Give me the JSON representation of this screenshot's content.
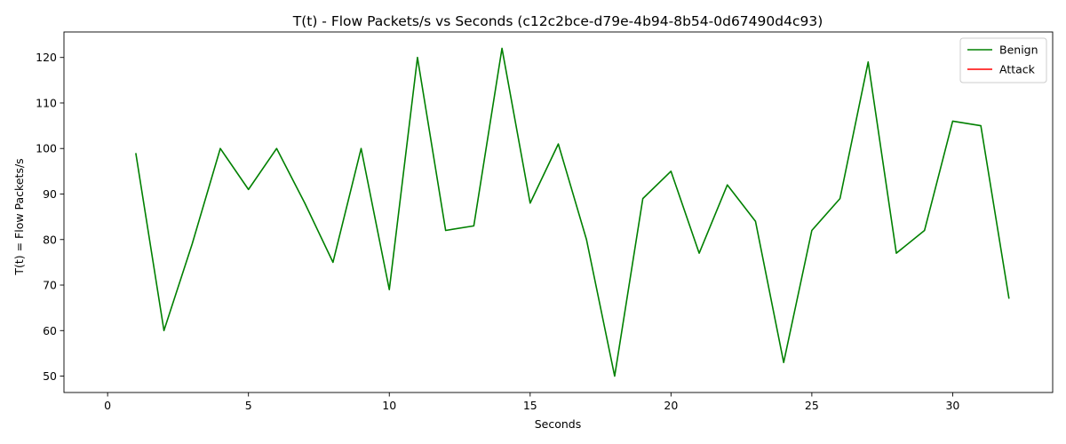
{
  "chart_data": {
    "type": "line",
    "title": "T(t) - Flow Packets/s vs Seconds (c12c2bce-d79e-4b94-8b54-0d67490d4c93)",
    "xlabel": "Seconds",
    "ylabel": "T(t) = Flow Packets/s",
    "xlim": [
      -1.55,
      33.55
    ],
    "ylim": [
      46.4,
      125.6
    ],
    "xticks": [
      0,
      5,
      10,
      15,
      20,
      25,
      30
    ],
    "yticks": [
      50,
      60,
      70,
      80,
      90,
      100,
      110,
      120
    ],
    "grid": false,
    "legend_position": "top-right",
    "series": [
      {
        "name": "Benign",
        "color": "#008000",
        "x": [
          1,
          2,
          3,
          4,
          5,
          6,
          7,
          8,
          9,
          10,
          11,
          12,
          13,
          14,
          15,
          16,
          17,
          18,
          19,
          20,
          21,
          22,
          23,
          24,
          25,
          26,
          27,
          28,
          29,
          30,
          31,
          32
        ],
        "y": [
          99,
          60,
          79,
          100,
          91,
          100,
          88,
          75,
          100,
          69,
          120,
          82,
          83,
          122,
          88,
          101,
          80,
          50,
          89,
          95,
          77,
          92,
          84,
          53,
          82,
          89,
          119,
          77,
          82,
          106,
          105,
          67
        ]
      },
      {
        "name": "Attack",
        "color": "#ff0000",
        "x": [],
        "y": []
      }
    ]
  }
}
